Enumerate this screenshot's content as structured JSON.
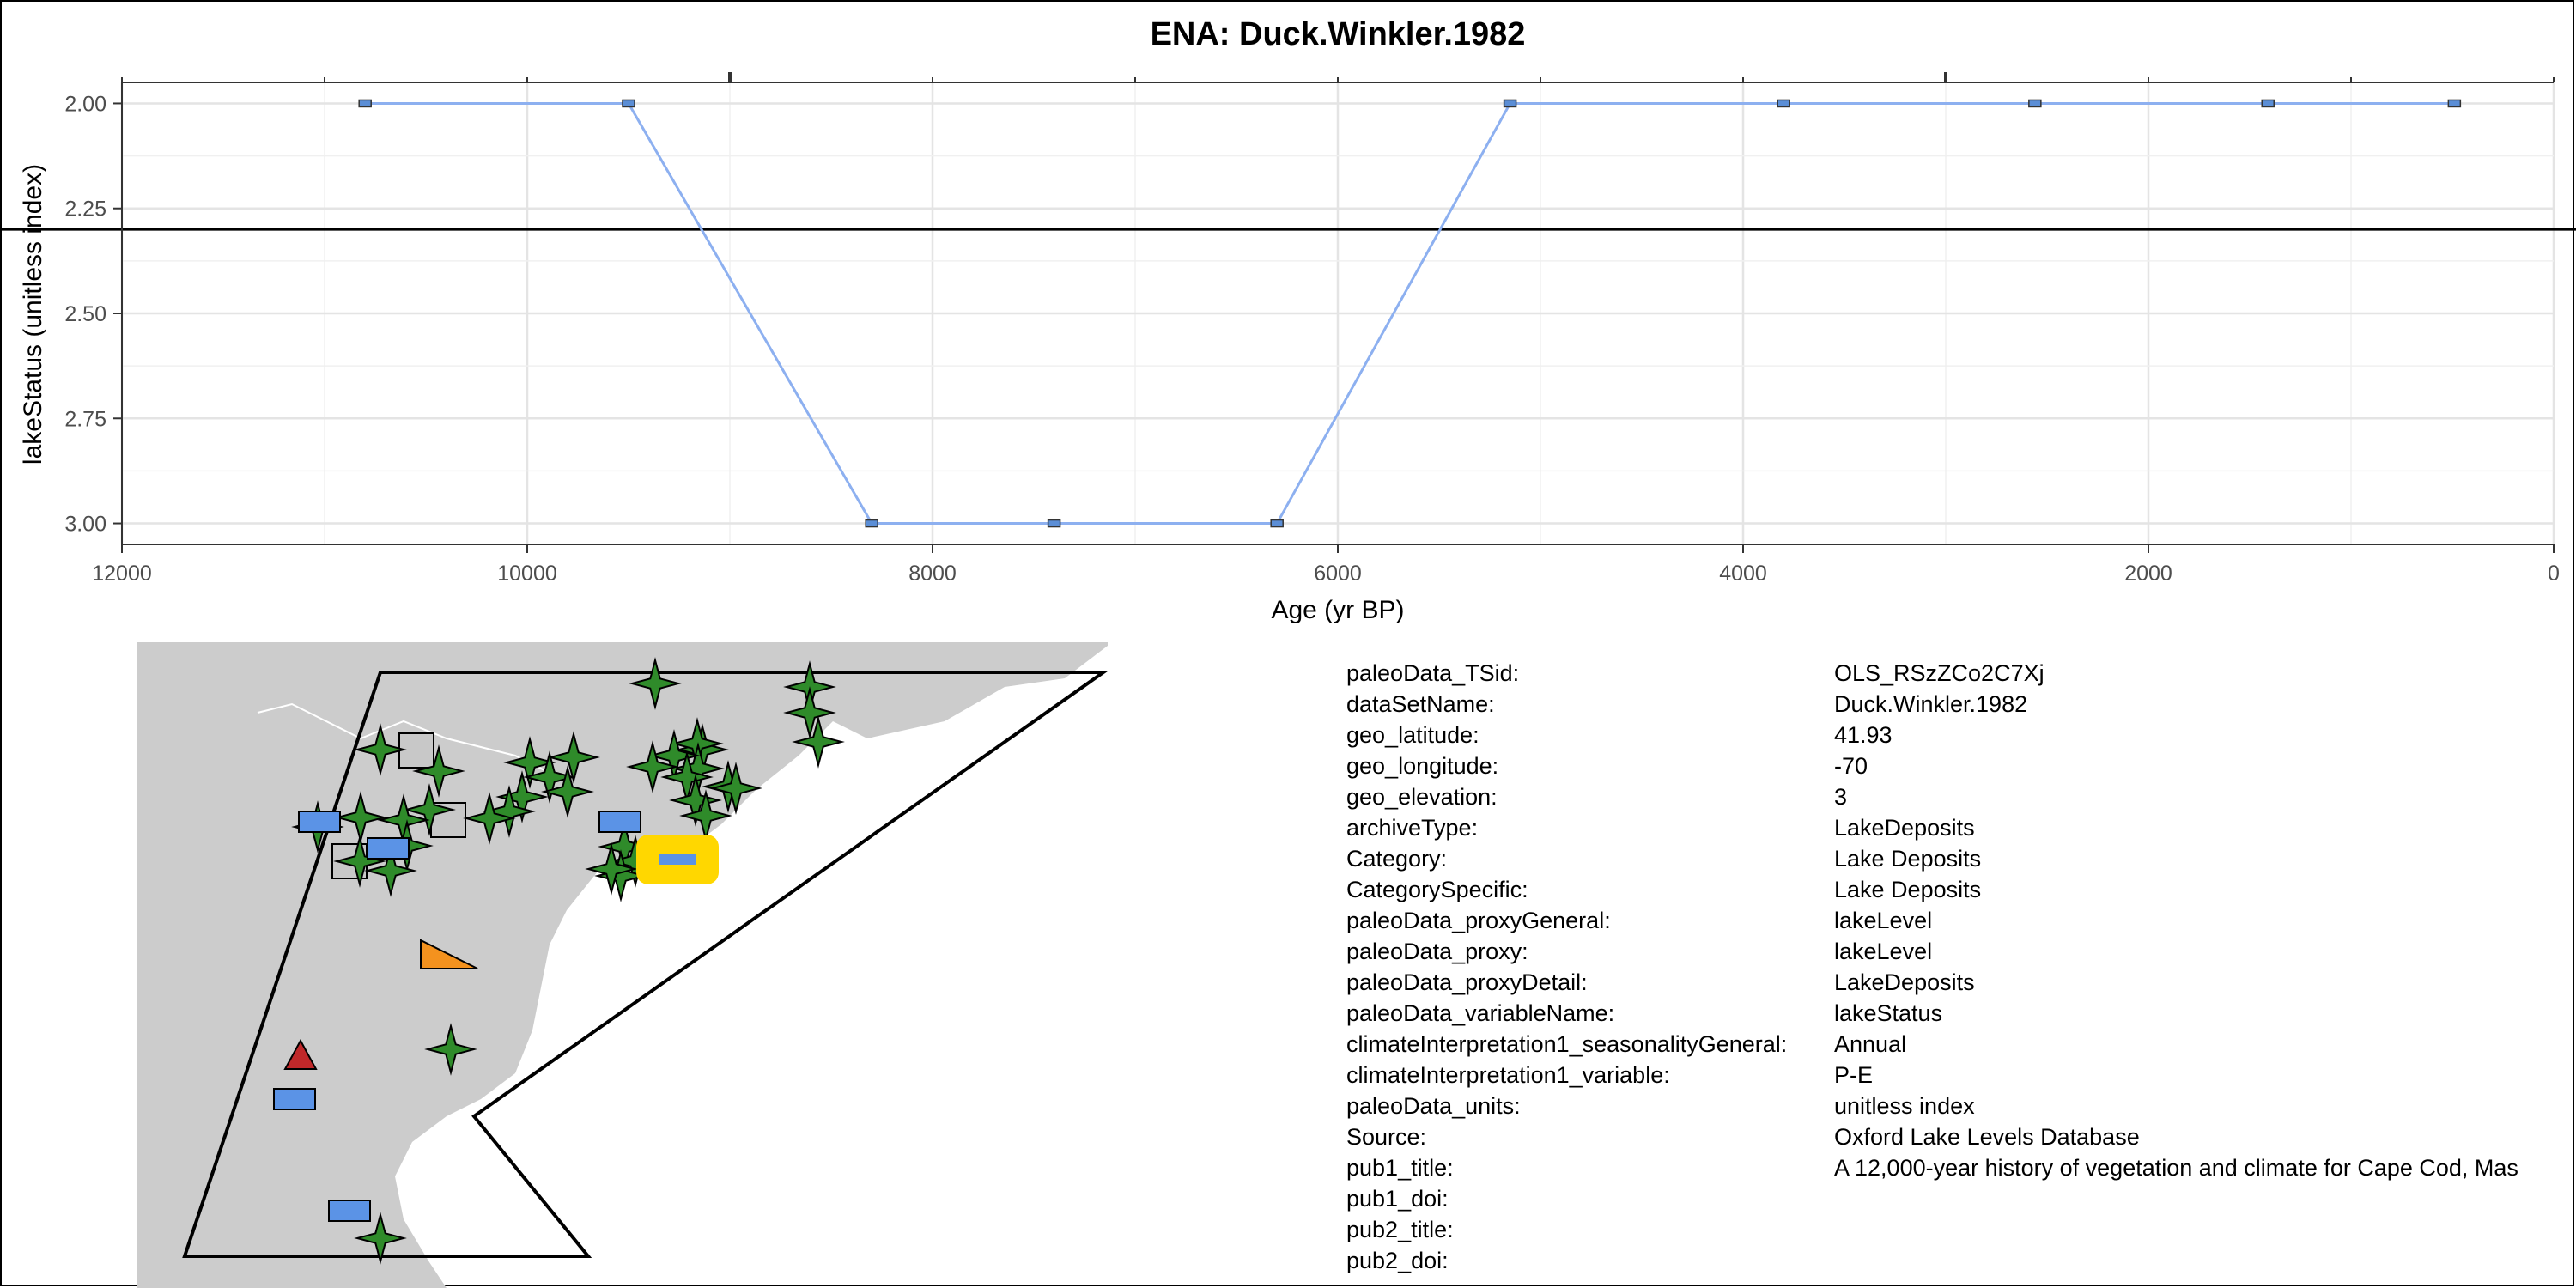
{
  "chart_data": {
    "type": "line",
    "title": "ENA: Duck.Winkler.1982",
    "xlabel": "Age (yr BP)",
    "ylabel": "lakeStatus (unitless index)",
    "xlim": [
      12000,
      0
    ],
    "ylim": [
      1.95,
      3.05
    ],
    "y_reversed": true,
    "x_ticks": [
      "12000",
      "10000",
      "8000",
      "6000",
      "4000",
      "2000",
      "0"
    ],
    "y_ticks": [
      "2.00",
      "2.25",
      "2.50",
      "2.75",
      "3.00"
    ],
    "reference_line_y": 2.3,
    "grid": true,
    "series": [
      {
        "color": "#8db0f0",
        "marker_color": "#5b8ed6",
        "x": [
          10800,
          9500,
          8300,
          7400,
          6300,
          5150,
          3800,
          2560,
          1410,
          490
        ],
        "y": [
          2.0,
          2.0,
          3.0,
          3.0,
          3.0,
          2.0,
          2.0,
          2.0,
          2.0,
          2.0
        ]
      }
    ]
  },
  "map": {
    "land_color": "#cccccc",
    "highlight_color": "#ffd700",
    "marker_colors": {
      "star": "#2f8b2a",
      "lake": "#5b93e6",
      "square": "#c8c8c8",
      "orange_triangle": "#f4921e",
      "red_triangle": "#c0282a"
    }
  },
  "metadata": [
    {
      "key": "paleoData_TSid:",
      "value": "OLS_RSzZCo2C7Xj"
    },
    {
      "key": "dataSetName:",
      "value": "Duck.Winkler.1982"
    },
    {
      "key": "geo_latitude:",
      "value": "41.93"
    },
    {
      "key": "geo_longitude:",
      "value": "-70"
    },
    {
      "key": "geo_elevation:",
      "value": "3"
    },
    {
      "key": "archiveType:",
      "value": "LakeDeposits"
    },
    {
      "key": "Category:",
      "value": "Lake Deposits"
    },
    {
      "key": "CategorySpecific:",
      "value": "Lake Deposits"
    },
    {
      "key": "paleoData_proxyGeneral:",
      "value": "lakeLevel"
    },
    {
      "key": "paleoData_proxy:",
      "value": "lakeLevel"
    },
    {
      "key": "paleoData_proxyDetail:",
      "value": "LakeDeposits"
    },
    {
      "key": "paleoData_variableName:",
      "value": "lakeStatus"
    },
    {
      "key": "climateInterpretation1_seasonalityGeneral:",
      "value": "Annual"
    },
    {
      "key": "climateInterpretation1_variable:",
      "value": "P-E"
    },
    {
      "key": "paleoData_units:",
      "value": "unitless index"
    },
    {
      "key": "Source:",
      "value": "Oxford Lake Levels Database"
    },
    {
      "key": "pub1_title:",
      "value": "A 12,000-year history of vegetation and climate for Cape Cod, Mas"
    },
    {
      "key": "pub1_doi:",
      "value": ""
    },
    {
      "key": "pub2_title:",
      "value": ""
    },
    {
      "key": "pub2_doi:",
      "value": ""
    }
  ]
}
